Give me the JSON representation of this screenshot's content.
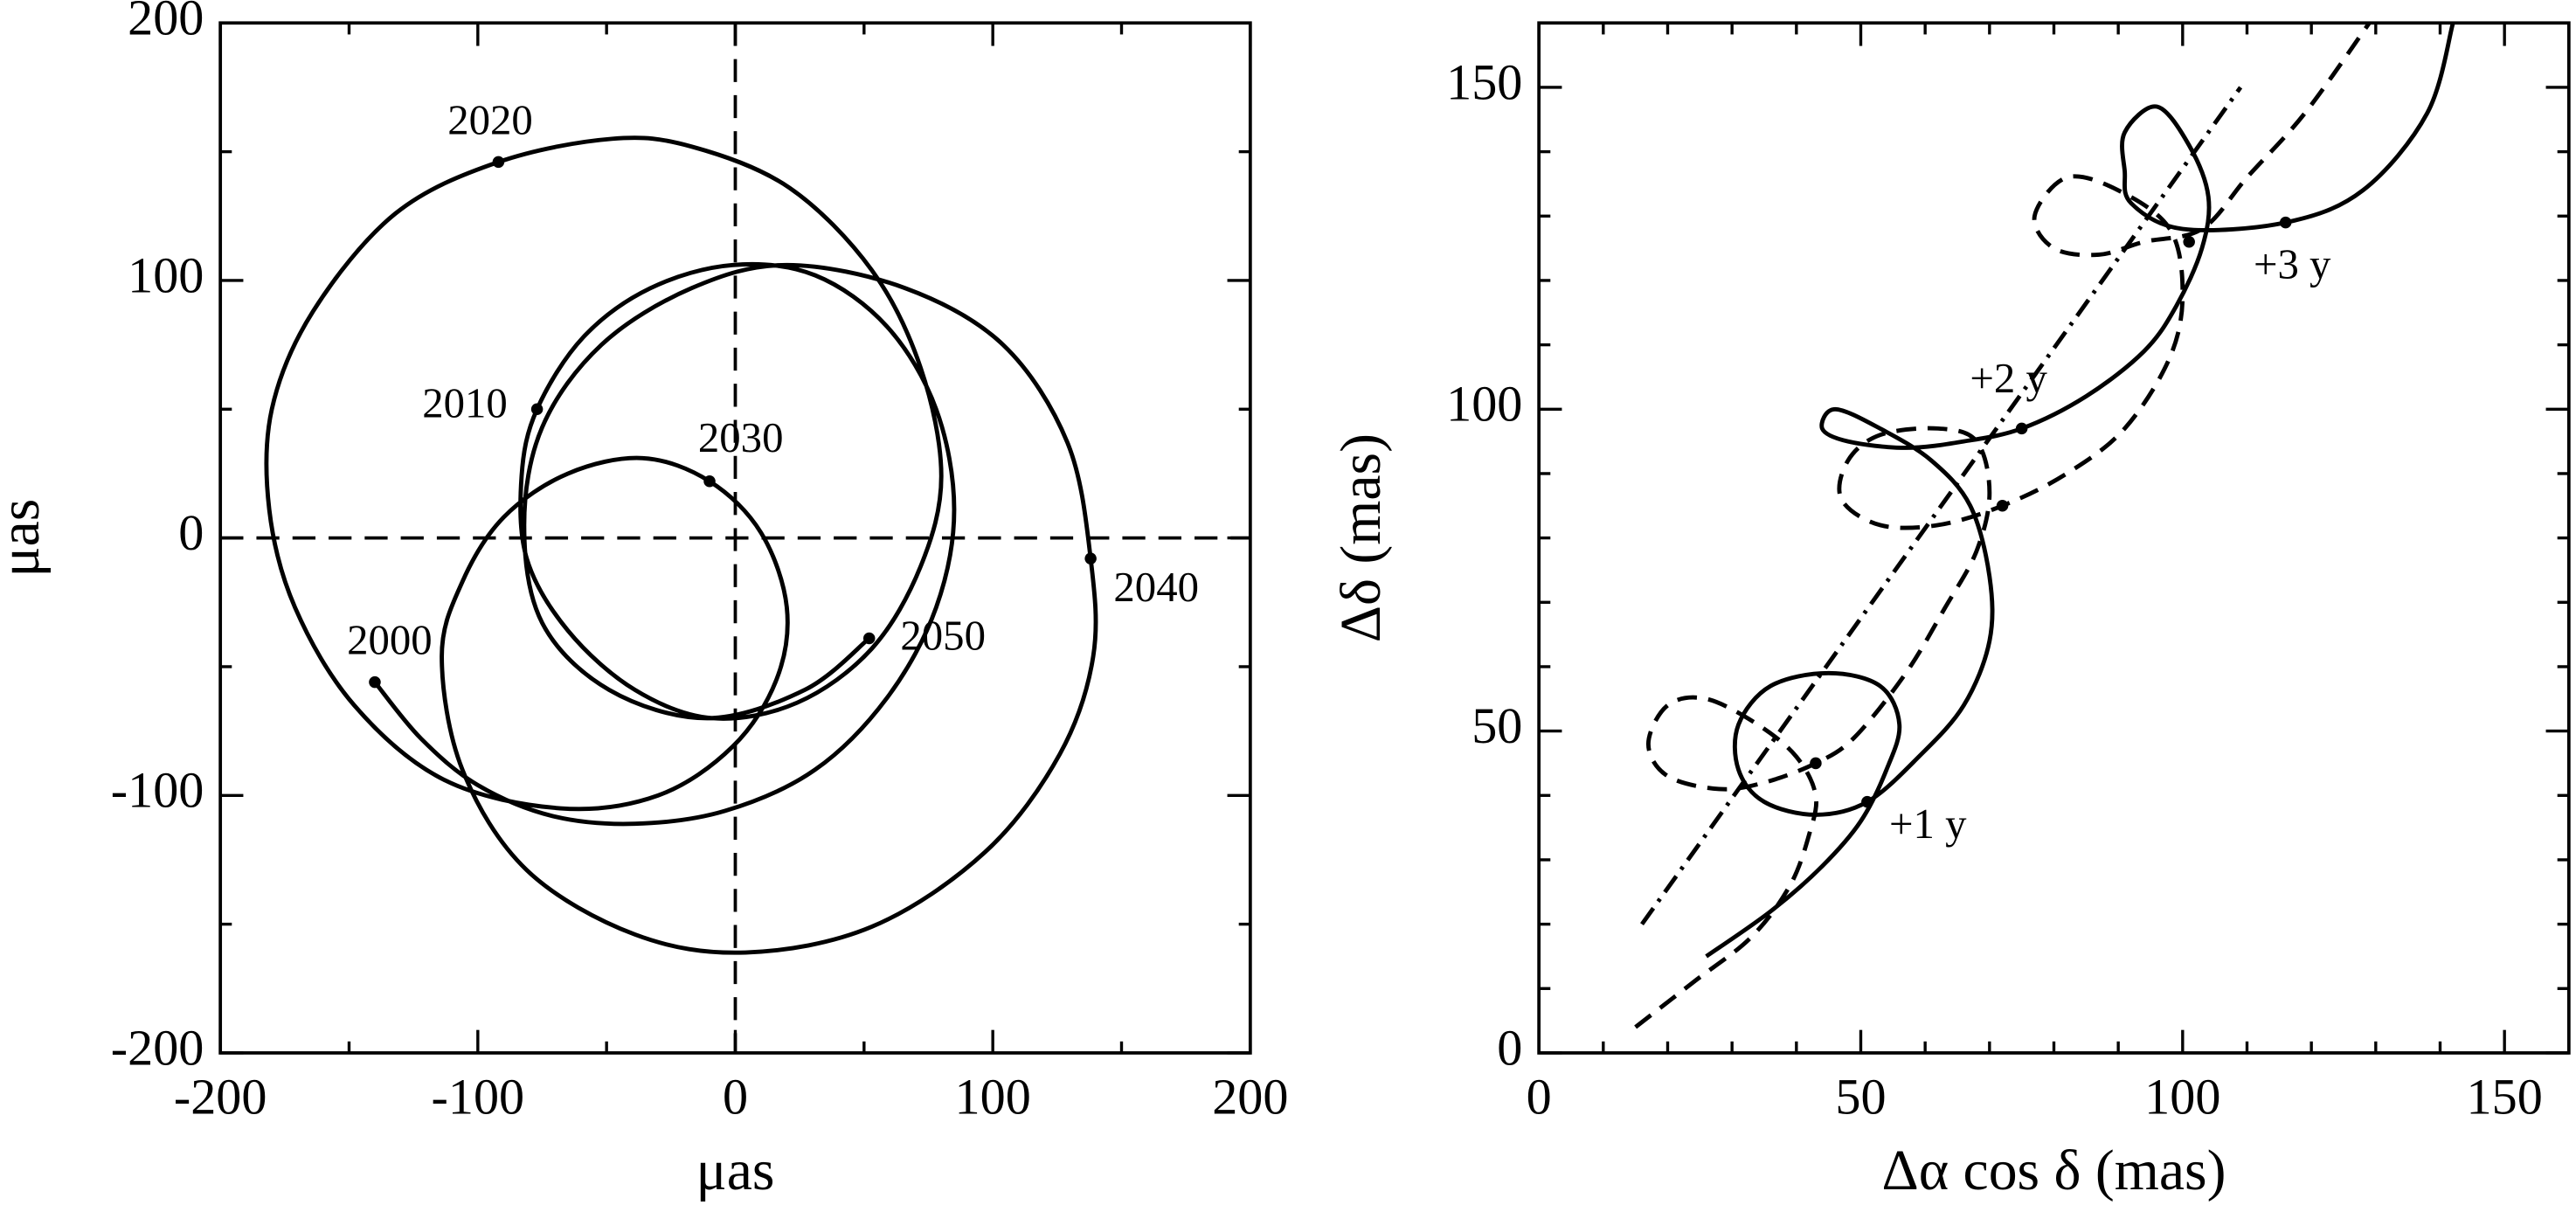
{
  "chart_data": [
    {
      "type": "line",
      "xlabel": "μas",
      "ylabel": "μas",
      "xlim": [
        -200,
        200
      ],
      "ylim": [
        -200,
        200
      ],
      "xticks": [
        -200,
        -100,
        0,
        100,
        200
      ],
      "yticks": [
        -200,
        -100,
        0,
        100,
        200
      ],
      "xticks_minor": [
        -150,
        -50,
        50,
        150
      ],
      "yticks_minor": [
        -150,
        -50,
        50,
        150
      ],
      "hlines": [
        0
      ],
      "vlines": [
        0
      ],
      "series": [
        {
          "color": "#000000",
          "style": "solid",
          "x": [
            -140,
            -122,
            -100,
            -71,
            -39,
            -4,
            31,
            59,
            78,
            85,
            78,
            59,
            31,
            -1,
            -33,
            -59,
            -77,
            -83,
            -81,
            -65,
            -39,
            -9,
            24,
            53,
            72,
            80,
            72,
            53,
            21,
            -17,
            -48,
            -92,
            -132,
            -164,
            -180,
            -181,
            -171,
            -148,
            -113,
            -68,
            -30,
            -1,
            16,
            20,
            10,
            -10,
            -36,
            -65,
            -90,
            -106,
            -114,
            -106,
            -81,
            -39,
            4,
            53,
            97,
            126,
            139,
            138,
            129,
            104,
            66,
            20,
            -17,
            -52,
            -75,
            -82,
            -75,
            -49,
            -11,
            27,
            52
          ],
          "y": [
            -56,
            -78,
            -96,
            -108,
            -111,
            -106,
            -90,
            -62,
            -27,
            11,
            50,
            82,
            102,
            106,
            97,
            78,
            50,
            24,
            -8,
            -36,
            -59,
            -70,
            -64,
            -43,
            -11,
            24,
            66,
            104,
            136,
            152,
            155,
            146,
            126,
            88,
            50,
            11,
            -27,
            -65,
            -94,
            -105,
            -100,
            -81,
            -55,
            -27,
            2,
            22,
            31,
            25,
            8,
            -17,
            -46,
            -90,
            -129,
            -154,
            -161,
            -151,
            -122,
            -84,
            -46,
            -8,
            37,
            75,
            97,
            106,
            97,
            75,
            43,
            5,
            -33,
            -59,
            -70,
            -59,
            -39
          ]
        }
      ],
      "points": [
        {
          "label": "2000",
          "x": -140,
          "y": -56
        },
        {
          "label": "2010",
          "x": -77,
          "y": 50
        },
        {
          "label": "2020",
          "x": -92,
          "y": 146
        },
        {
          "label": "2030",
          "x": -10,
          "y": 22
        },
        {
          "label": "2040",
          "x": 138,
          "y": -8
        },
        {
          "label": "2050",
          "x": 52,
          "y": -39
        }
      ]
    },
    {
      "type": "line",
      "xlabel": "Δα cos δ (mas)",
      "ylabel": "Δδ (mas)",
      "xlim": [
        0,
        160
      ],
      "ylim": [
        0,
        160
      ],
      "xticks": [
        0,
        50,
        100,
        150
      ],
      "yticks": [
        0,
        50,
        100,
        150
      ],
      "xticks_minor": [
        10,
        20,
        30,
        40,
        60,
        70,
        80,
        90,
        110,
        120,
        130,
        140
      ],
      "yticks_minor": [
        10,
        20,
        30,
        40,
        60,
        70,
        80,
        90,
        110,
        120,
        130,
        140
      ],
      "series": [
        {
          "color": "#000000",
          "style": "solid",
          "x": [
            26,
            36,
            44,
            50,
            54,
            56,
            53,
            45,
            36,
            31,
            31,
            35,
            43,
            51,
            59,
            66,
            70,
            70,
            67,
            61,
            53,
            46,
            44,
            48,
            57,
            66,
            75,
            85,
            94,
            99,
            103,
            104,
            101,
            96,
            91,
            91,
            92,
            100,
            116,
            128,
            138,
            142
          ],
          "y": [
            15,
            22,
            29,
            36,
            44,
            51,
            57,
            59,
            57,
            51,
            44,
            39,
            37,
            39,
            46,
            54,
            64,
            74,
            85,
            92,
            97,
            100,
            97,
            95,
            94,
            95,
            97,
            102,
            109,
            116,
            125,
            133,
            141,
            147,
            143,
            137,
            132,
            128,
            129,
            134,
            146,
            160
          ]
        },
        {
          "color": "#000000",
          "style": "dashed",
          "x": [
            15,
            24,
            33,
            39,
            42,
            43,
            40,
            34,
            26,
            20,
            17,
            20,
            28,
            35,
            43,
            49,
            57,
            63,
            68,
            70,
            68,
            62,
            53,
            48,
            47,
            53,
            62,
            72,
            82,
            91,
            98,
            100,
            98,
            90,
            82,
            77,
            80,
            87,
            94,
            103,
            110,
            119,
            129
          ],
          "y": [
            4,
            11,
            18,
            26,
            34,
            40,
            46,
            51,
            55,
            54,
            48,
            43,
            41,
            42,
            45,
            49,
            59,
            69,
            78,
            87,
            95,
            97,
            96,
            92,
            86,
            82,
            82,
            85,
            90,
            97,
            108,
            118,
            128,
            134,
            136,
            130,
            125,
            124,
            126,
            128,
            136,
            146,
            160
          ]
        },
        {
          "color": "#000000",
          "style": "dashdot",
          "x": [
            16,
            109
          ],
          "y": [
            20,
            150
          ]
        }
      ],
      "points": [
        {
          "label": "+1 y",
          "x": 51,
          "y": 39
        },
        {
          "label": "+2 y",
          "x": 75,
          "y": 97
        },
        {
          "label": "+3 y",
          "x": 116,
          "y": 129
        },
        {
          "x": 43,
          "y": 45
        },
        {
          "x": 72,
          "y": 85
        },
        {
          "x": 101,
          "y": 126
        }
      ]
    }
  ]
}
